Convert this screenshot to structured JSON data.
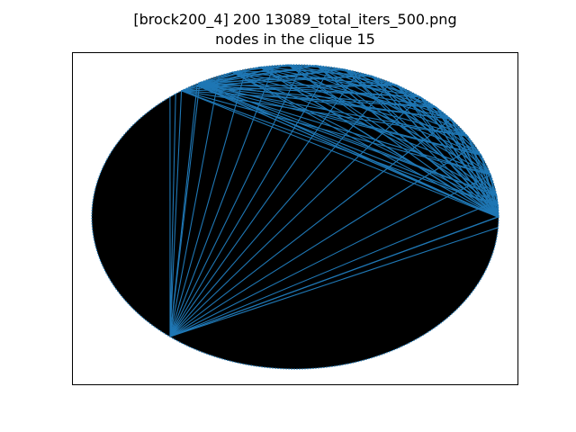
{
  "title": {
    "line1": "[brock200_4] 200 13089_total_iters_500.png",
    "line2": "nodes in the clique 15"
  },
  "graph": {
    "node_count": 200,
    "clique_size": 15,
    "fill_color": "#000000",
    "edge_color": "#1f77b4",
    "frame_color": "#000000",
    "hub_nodes": [
      "left-lower hub",
      "right hub",
      "upper-left hub"
    ]
  }
}
